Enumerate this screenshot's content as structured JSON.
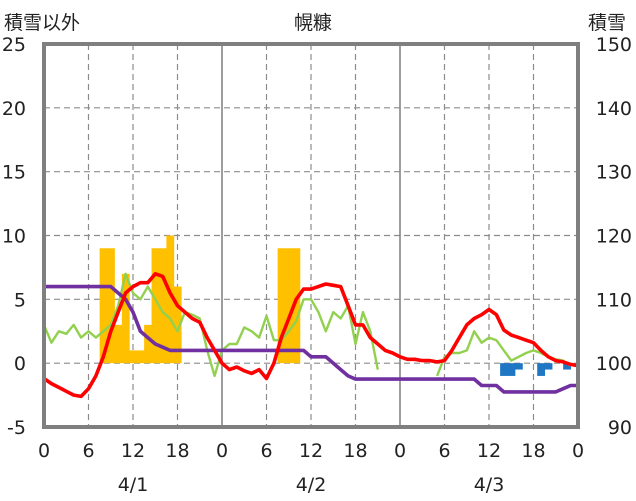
{
  "header": {
    "left_axis_title": "積雪以外",
    "center_title": "幌糠",
    "right_axis_title": "積雪"
  },
  "chart_data": {
    "type": "combo",
    "title": "幌糠",
    "left_axis": {
      "label": "積雪以外",
      "range": [
        -5,
        25
      ],
      "ticks": [
        25,
        20,
        15,
        10,
        5,
        0,
        -5
      ]
    },
    "right_axis": {
      "label": "積雪",
      "range": [
        90,
        150
      ],
      "ticks": [
        150,
        140,
        130,
        120,
        110,
        100,
        90
      ]
    },
    "x_axis": {
      "hours_range": [
        0,
        72
      ],
      "tick_hours": [
        0,
        6,
        12,
        18,
        24,
        30,
        36,
        42,
        48,
        54,
        60,
        66,
        72
      ],
      "tick_labels": [
        "0",
        "6",
        "12",
        "18",
        "0",
        "6",
        "12",
        "18",
        "0",
        "6",
        "12",
        "18",
        "0"
      ],
      "date_labels": [
        {
          "label": "4/1",
          "hour": 12
        },
        {
          "label": "4/2",
          "hour": 36
        },
        {
          "label": "4/3",
          "hour": 60
        }
      ],
      "day_boundaries": [
        24,
        48
      ],
      "dashed_grid_hours": [
        6,
        12,
        18,
        30,
        36,
        42,
        54,
        60,
        66
      ]
    },
    "grid": true,
    "series": [
      {
        "type": "bar",
        "axis": "left",
        "color": "#FFC000",
        "bars": [
          {
            "x": 8.0,
            "y": 9
          },
          {
            "x": 9.0,
            "y": 9
          },
          {
            "x": 10.0,
            "y": 3
          },
          {
            "x": 11.0,
            "y": 7
          },
          {
            "x": 12.0,
            "y": 1
          },
          {
            "x": 13.0,
            "y": 1
          },
          {
            "x": 14.0,
            "y": 3
          },
          {
            "x": 15.0,
            "y": 9
          },
          {
            "x": 16.0,
            "y": 9
          },
          {
            "x": 17.0,
            "y": 10
          },
          {
            "x": 18.0,
            "y": 6
          },
          {
            "x": 32.0,
            "y": 9
          },
          {
            "x": 33.0,
            "y": 9
          },
          {
            "x": 34.0,
            "y": 9
          }
        ]
      },
      {
        "type": "bar",
        "axis": "left",
        "color": "#1F77C4",
        "bars": [
          {
            "x": 62.0,
            "y": -1
          },
          {
            "x": 63.0,
            "y": -1
          },
          {
            "x": 64.0,
            "y": -0.5
          },
          {
            "x": 67.0,
            "y": -1
          },
          {
            "x": 68.0,
            "y": -0.5
          },
          {
            "x": 70.5,
            "y": -0.5
          }
        ]
      },
      {
        "type": "line",
        "axis": "left",
        "color": "#92D050",
        "points": [
          [
            0,
            3
          ],
          [
            1,
            1.6
          ],
          [
            2,
            2.5
          ],
          [
            3,
            2.3
          ],
          [
            4,
            3
          ],
          [
            5,
            2
          ],
          [
            6,
            2.5
          ],
          [
            7,
            2
          ],
          [
            8,
            2.5
          ],
          [
            9,
            3
          ],
          [
            10,
            4.5
          ],
          [
            11,
            7
          ],
          [
            12,
            5.5
          ],
          [
            13,
            5
          ],
          [
            14,
            6
          ],
          [
            15,
            5
          ],
          [
            16,
            4
          ],
          [
            17,
            3.5
          ],
          [
            18,
            2.5
          ],
          [
            19,
            4
          ],
          [
            20,
            3.8
          ],
          [
            21,
            3.5
          ],
          [
            22,
            1
          ],
          [
            23,
            -1
          ],
          [
            24,
            1
          ],
          [
            25,
            1.5
          ],
          [
            26,
            1.5
          ],
          [
            27,
            2.8
          ],
          [
            28,
            2.5
          ],
          [
            29,
            2
          ],
          [
            30,
            3.7
          ],
          [
            31,
            1.8
          ],
          [
            32,
            1.8
          ],
          [
            33,
            2.5
          ],
          [
            34,
            3.3
          ],
          [
            35,
            5
          ],
          [
            36,
            5
          ],
          [
            37,
            4
          ],
          [
            38,
            2.5
          ],
          [
            39,
            4
          ],
          [
            40,
            3.5
          ],
          [
            41,
            4.5
          ],
          [
            42,
            1.5
          ],
          [
            43,
            4
          ],
          [
            44,
            2.5
          ],
          [
            45,
            -0.5
          ]
        ],
        "points_2": [
          [
            53,
            -1
          ],
          [
            54,
            0.5
          ],
          [
            55,
            0.8
          ],
          [
            56,
            0.8
          ],
          [
            57,
            1
          ],
          [
            58,
            2.5
          ],
          [
            59,
            1.6
          ],
          [
            60,
            2
          ],
          [
            61,
            1.8
          ],
          [
            62,
            1
          ],
          [
            63,
            0.2
          ],
          [
            64,
            0.5
          ],
          [
            65,
            0.8
          ],
          [
            66,
            1
          ],
          [
            67,
            0.8
          ],
          [
            68,
            0.5
          ],
          [
            69,
            0.3
          ],
          [
            70,
            0.2
          ],
          [
            71,
            -0.2
          ]
        ]
      },
      {
        "type": "line",
        "axis": "left",
        "color": "#FF0000",
        "points": [
          [
            0,
            -1.2
          ],
          [
            1,
            -1.6
          ],
          [
            2,
            -1.9
          ],
          [
            3,
            -2.2
          ],
          [
            4,
            -2.5
          ],
          [
            5,
            -2.6
          ],
          [
            6,
            -2
          ],
          [
            7,
            -1
          ],
          [
            8,
            0.5
          ],
          [
            9,
            2.5
          ],
          [
            10,
            4
          ],
          [
            11,
            5.5
          ],
          [
            12,
            6
          ],
          [
            13,
            6.3
          ],
          [
            14,
            6.3
          ],
          [
            15,
            7
          ],
          [
            16,
            6.8
          ],
          [
            17,
            5.5
          ],
          [
            18,
            4.5
          ],
          [
            19,
            4
          ],
          [
            20,
            3.5
          ],
          [
            21,
            3.2
          ],
          [
            22,
            2
          ],
          [
            23,
            1
          ],
          [
            24,
            0
          ],
          [
            25,
            -0.5
          ],
          [
            26,
            -0.3
          ],
          [
            27,
            -0.6
          ],
          [
            28,
            -0.8
          ],
          [
            29,
            -0.5
          ],
          [
            30,
            -1.2
          ],
          [
            31,
            0
          ],
          [
            32,
            2
          ],
          [
            33,
            3.5
          ],
          [
            34,
            5
          ],
          [
            35,
            5.8
          ],
          [
            36,
            5.8
          ],
          [
            37,
            6
          ],
          [
            38,
            6.2
          ],
          [
            39,
            6.1
          ],
          [
            40,
            6
          ],
          [
            41,
            4.5
          ],
          [
            42,
            3
          ],
          [
            43,
            3
          ],
          [
            44,
            2
          ],
          [
            45,
            1.5
          ],
          [
            46,
            1
          ],
          [
            47,
            0.8
          ],
          [
            48,
            0.5
          ],
          [
            49,
            0.3
          ],
          [
            50,
            0.3
          ],
          [
            51,
            0.2
          ],
          [
            52,
            0.2
          ],
          [
            53,
            0.1
          ],
          [
            54,
            0.2
          ],
          [
            55,
            1
          ],
          [
            56,
            2
          ],
          [
            57,
            3
          ],
          [
            58,
            3.5
          ],
          [
            59,
            3.8
          ],
          [
            60,
            4.2
          ],
          [
            61,
            3.8
          ],
          [
            62,
            2.6
          ],
          [
            63,
            2.2
          ],
          [
            64,
            2
          ],
          [
            65,
            1.8
          ],
          [
            66,
            1.6
          ],
          [
            67,
            1
          ],
          [
            68,
            0.5
          ],
          [
            69,
            0.2
          ],
          [
            70,
            0.1
          ],
          [
            71,
            -0.1
          ],
          [
            72,
            -0.2
          ]
        ]
      },
      {
        "type": "line",
        "axis": "right",
        "color": "#7030A0",
        "points": [
          [
            0,
            112
          ],
          [
            9,
            112
          ],
          [
            10,
            111
          ],
          [
            11,
            110
          ],
          [
            12,
            108
          ],
          [
            13,
            105
          ],
          [
            14,
            104
          ],
          [
            15,
            103
          ],
          [
            16,
            102.5
          ],
          [
            17,
            102
          ],
          [
            35,
            102
          ],
          [
            36,
            101
          ],
          [
            38,
            101
          ],
          [
            39,
            100
          ],
          [
            40,
            99
          ],
          [
            41,
            98
          ],
          [
            42,
            97.5
          ],
          [
            58,
            97.5
          ],
          [
            59,
            96.5
          ],
          [
            61,
            96.5
          ],
          [
            62,
            95.5
          ],
          [
            69,
            95.5
          ],
          [
            70,
            96
          ],
          [
            71,
            96.5
          ],
          [
            72,
            96.5
          ]
        ]
      }
    ]
  }
}
